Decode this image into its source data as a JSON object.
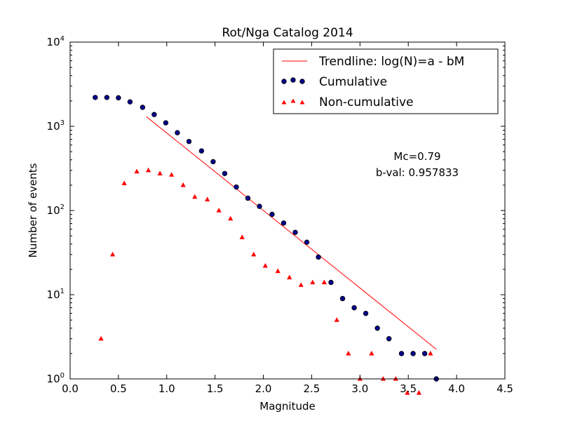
{
  "chart_data": {
    "type": "scatter",
    "title": "Rot/Nga Catalog 2014",
    "xlabel": "Magnitude",
    "ylabel": "Number of events",
    "xlim": [
      0.0,
      4.5
    ],
    "ylim": [
      1,
      10000
    ],
    "yscale": "log",
    "x_ticks": [
      "0.0",
      "0.5",
      "1.0",
      "1.5",
      "2.0",
      "2.5",
      "3.0",
      "3.5",
      "4.0",
      "4.5"
    ],
    "x_tick_values": [
      0.0,
      0.5,
      1.0,
      1.5,
      2.0,
      2.5,
      3.0,
      3.5,
      4.0,
      4.5
    ],
    "y_ticks": [
      {
        "base": "10",
        "exp": "0"
      },
      {
        "base": "10",
        "exp": "1"
      },
      {
        "base": "10",
        "exp": "2"
      },
      {
        "base": "10",
        "exp": "3"
      },
      {
        "base": "10",
        "exp": "4"
      }
    ],
    "y_tick_values": [
      1,
      10,
      100,
      1000,
      10000
    ],
    "legend_position": "top-right",
    "series": [
      {
        "name": "Trendline: log(N)=a - bM",
        "kind": "line",
        "color": "#ff0000",
        "x": [
          0.79,
          3.79
        ],
        "y": [
          1300,
          2.25
        ]
      },
      {
        "name": "Cumulative",
        "kind": "circle",
        "color": "#00008b",
        "x": [
          0.26,
          0.38,
          0.5,
          0.62,
          0.75,
          0.87,
          0.99,
          1.11,
          1.23,
          1.36,
          1.48,
          1.6,
          1.72,
          1.84,
          1.96,
          2.09,
          2.21,
          2.33,
          2.45,
          2.57,
          2.7,
          2.82,
          2.94,
          3.06,
          3.18,
          3.3,
          3.43,
          3.55,
          3.67,
          3.79
        ],
        "y": [
          2200,
          2200,
          2180,
          1950,
          1680,
          1380,
          1100,
          840,
          660,
          510,
          380,
          275,
          190,
          140,
          112,
          90,
          71,
          55,
          42,
          28,
          14,
          9,
          7,
          6,
          4,
          3,
          2,
          2,
          2,
          1
        ]
      },
      {
        "name": "Non-cumulative",
        "kind": "triangle",
        "color": "#ff0000",
        "x": [
          0.32,
          0.44,
          0.56,
          0.69,
          0.81,
          0.93,
          1.05,
          1.17,
          1.29,
          1.42,
          1.54,
          1.66,
          1.78,
          1.9,
          2.02,
          2.15,
          2.27,
          2.39,
          2.51,
          2.63,
          2.76,
          2.88,
          3.0,
          3.12,
          3.24,
          3.37,
          3.49,
          3.61,
          3.73
        ],
        "y": [
          3,
          30,
          210,
          290,
          300,
          275,
          265,
          200,
          145,
          135,
          100,
          80,
          48,
          30,
          22,
          19,
          16,
          13,
          14,
          14,
          5,
          2,
          1,
          2,
          1,
          1,
          0,
          0,
          2
        ]
      }
    ],
    "annotations": [
      "Mc=0.79",
      "b-val: 0.957833"
    ]
  }
}
